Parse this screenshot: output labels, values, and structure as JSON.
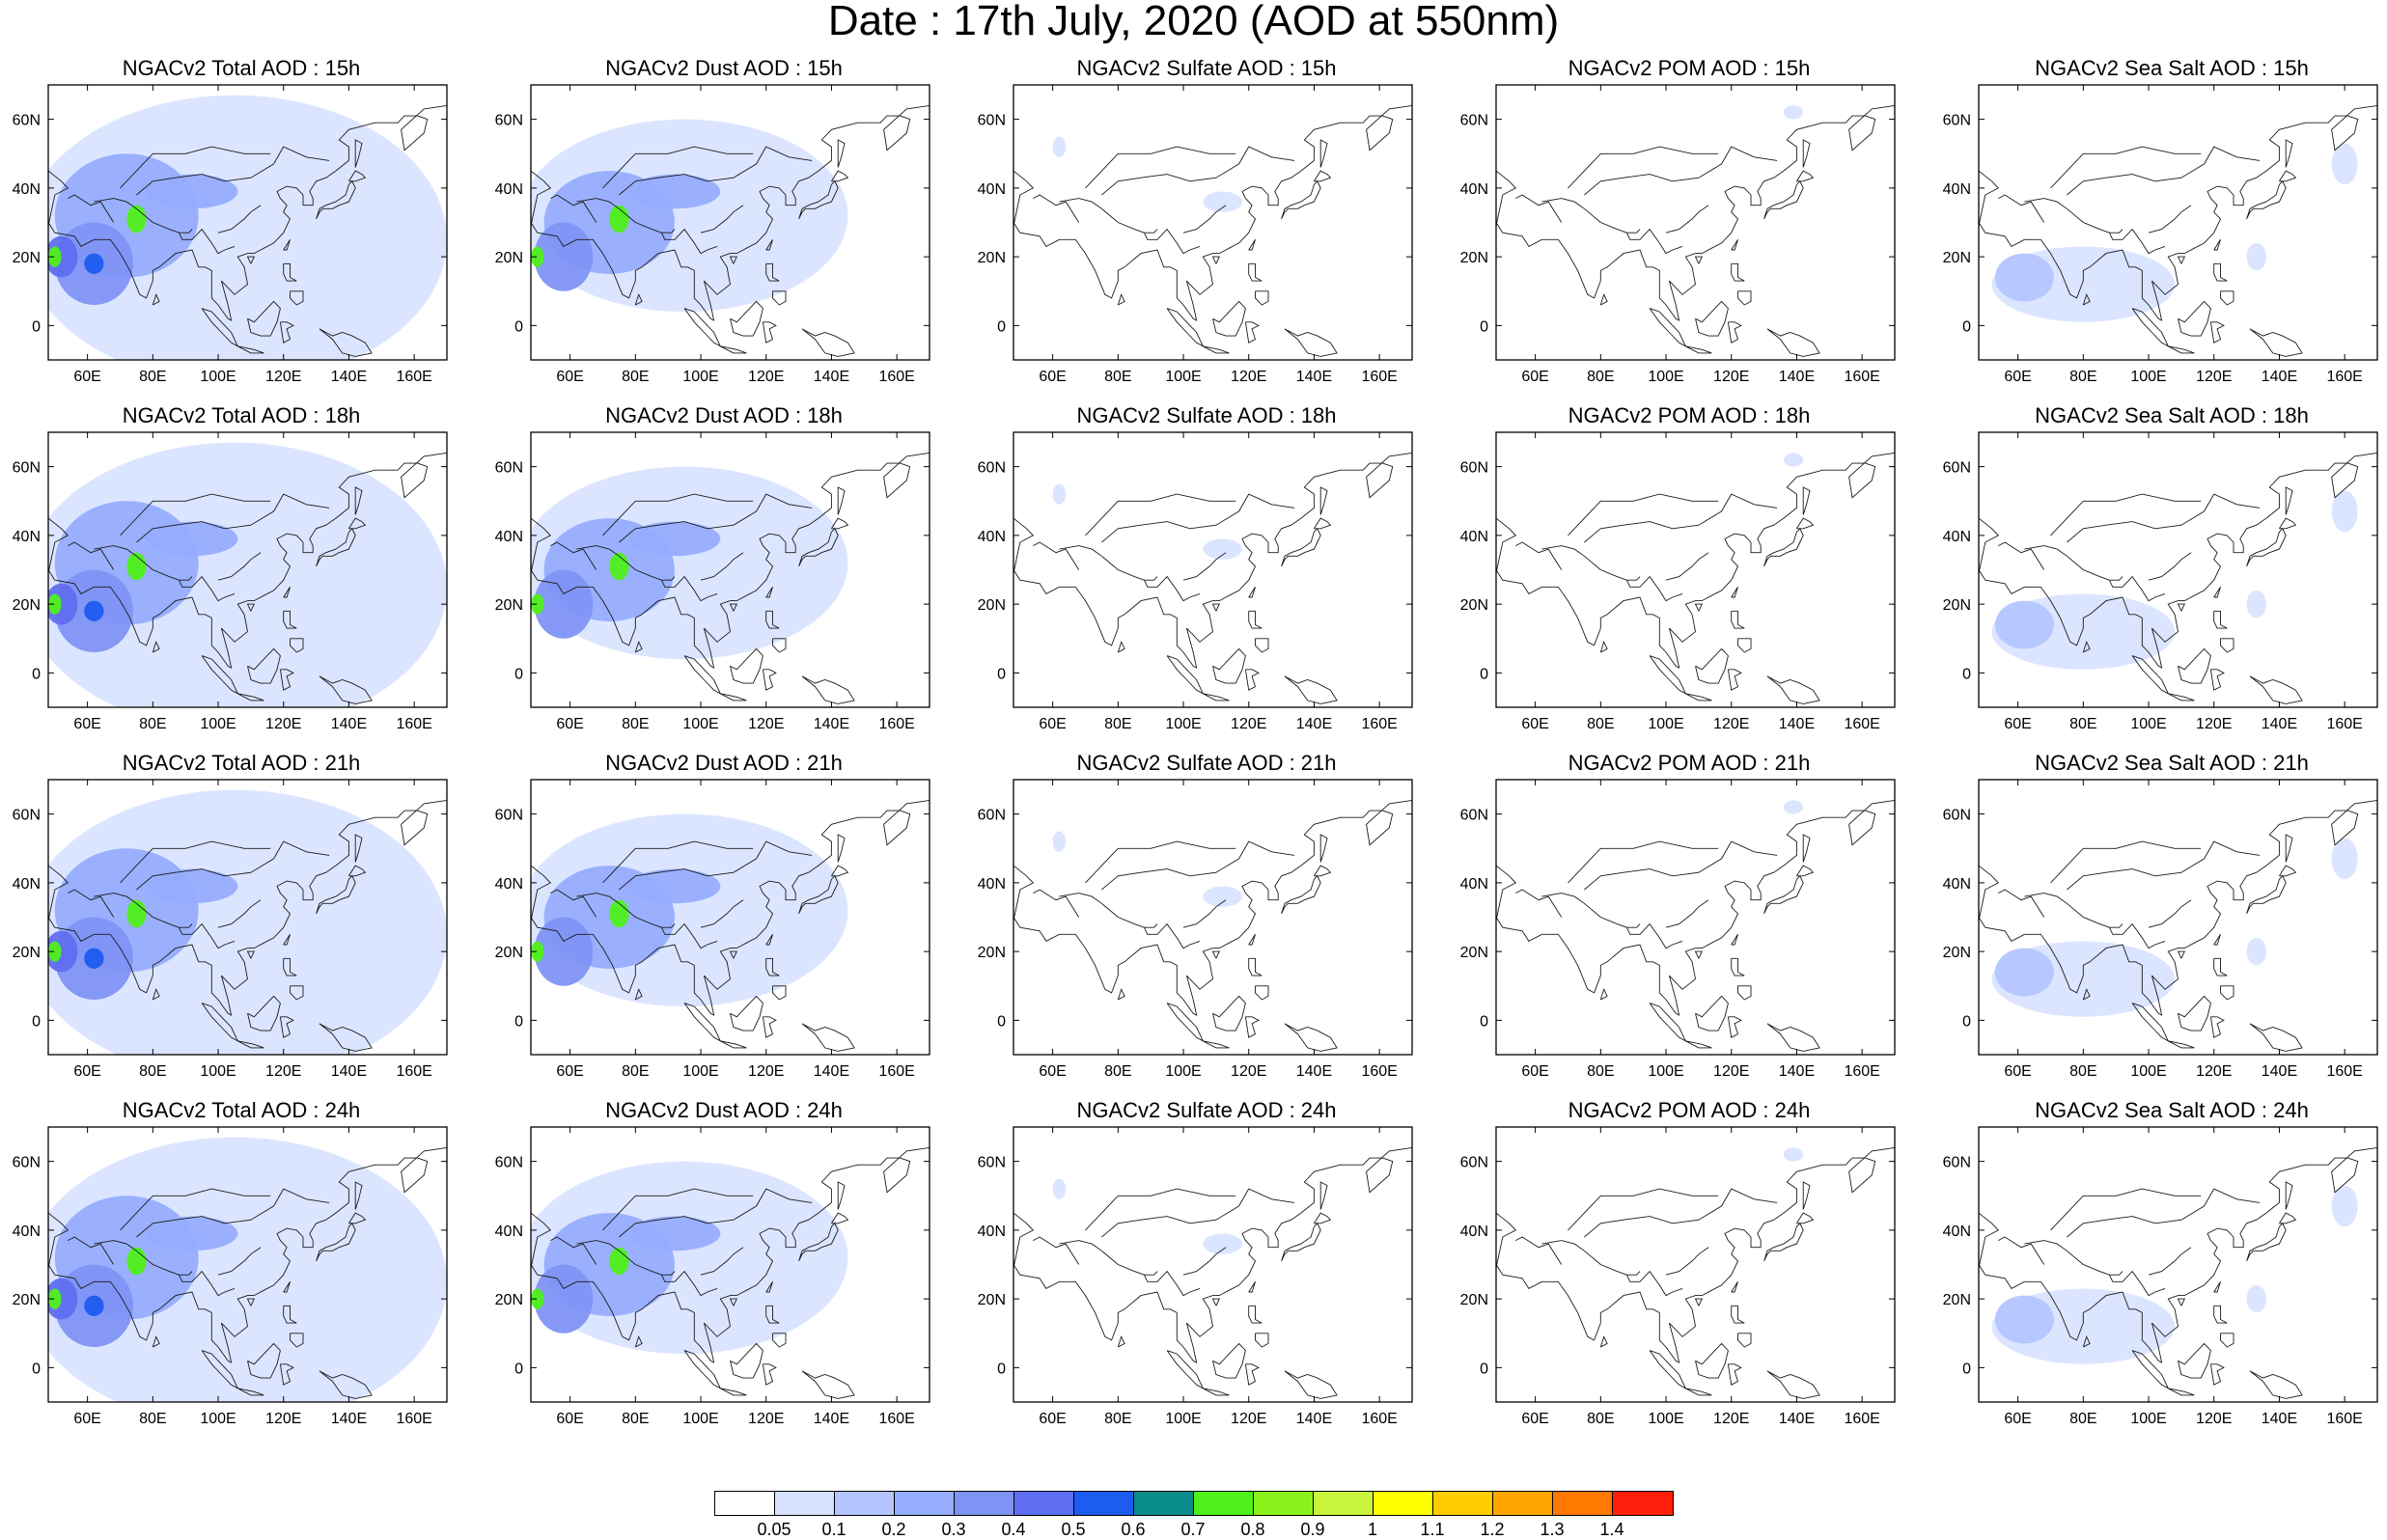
{
  "title": "Date : 17th July, 2020 (AOD at 550nm)",
  "map": {
    "lon_range": [
      48,
      170
    ],
    "lat_range": [
      -10,
      70
    ],
    "lon_ticks": [
      "60E",
      "80E",
      "100E",
      "120E",
      "140E",
      "160E"
    ],
    "lat_ticks": [
      "60N",
      "40N",
      "20N",
      "0"
    ]
  },
  "panels": [
    {
      "title": "NGACv2 Total AOD : 15h",
      "species": "total"
    },
    {
      "title": "NGACv2 Dust AOD : 15h",
      "species": "dust"
    },
    {
      "title": "NGACv2 Sulfate AOD : 15h",
      "species": "sulfate"
    },
    {
      "title": "NGACv2 POM AOD : 15h",
      "species": "pom"
    },
    {
      "title": "NGACv2 Sea Salt AOD : 15h",
      "species": "seasalt"
    },
    {
      "title": "NGACv2 Total AOD : 18h",
      "species": "total"
    },
    {
      "title": "NGACv2 Dust AOD : 18h",
      "species": "dust"
    },
    {
      "title": "NGACv2 Sulfate AOD : 18h",
      "species": "sulfate"
    },
    {
      "title": "NGACv2 POM AOD : 18h",
      "species": "pom"
    },
    {
      "title": "NGACv2 Sea Salt AOD : 18h",
      "species": "seasalt"
    },
    {
      "title": "NGACv2 Total AOD : 21h",
      "species": "total"
    },
    {
      "title": "NGACv2 Dust AOD : 21h",
      "species": "dust"
    },
    {
      "title": "NGACv2 Sulfate AOD : 21h",
      "species": "sulfate"
    },
    {
      "title": "NGACv2 POM AOD : 21h",
      "species": "pom"
    },
    {
      "title": "NGACv2 Sea Salt AOD : 21h",
      "species": "seasalt"
    },
    {
      "title": "NGACv2 Total AOD : 24h",
      "species": "total"
    },
    {
      "title": "NGACv2 Dust AOD : 24h",
      "species": "dust"
    },
    {
      "title": "NGACv2 Sulfate AOD : 24h",
      "species": "sulfate"
    },
    {
      "title": "NGACv2 POM AOD : 24h",
      "species": "pom"
    },
    {
      "title": "NGACv2 Sea Salt  AOD : 24h",
      "species": "seasalt"
    }
  ],
  "colorbar": {
    "labels": [
      "0.05",
      "0.1",
      "0.2",
      "0.3",
      "0.4",
      "0.5",
      "0.6",
      "0.7",
      "0.8",
      "0.9",
      "1",
      "1.1",
      "1.2",
      "1.3",
      "1.4"
    ],
    "colors": [
      "#ffffff",
      "#d6e0ff",
      "#b4c5ff",
      "#96adff",
      "#7f93f5",
      "#5f6ef0",
      "#1c5cf0",
      "#0a8c8c",
      "#4ff01a",
      "#8cf01a",
      "#c8f53c",
      "#ffff00",
      "#ffcc00",
      "#ffa500",
      "#ff7800",
      "#ff1e0a"
    ]
  },
  "plumes": {
    "total": [
      {
        "lon": 105,
        "lat": 25,
        "rx": 65,
        "ry": 42,
        "level": 1
      },
      {
        "lon": 72,
        "lat": 32,
        "rx": 22,
        "ry": 18,
        "level": 3
      },
      {
        "lon": 92,
        "lat": 39,
        "rx": 14,
        "ry": 5,
        "level": 3
      },
      {
        "lon": 62,
        "lat": 18,
        "rx": 12,
        "ry": 12,
        "level": 4
      },
      {
        "lon": 52,
        "lat": 20,
        "rx": 5,
        "ry": 6,
        "level": 5
      },
      {
        "lon": 75,
        "lat": 31,
        "rx": 3,
        "ry": 4,
        "level": 8
      },
      {
        "lon": 62,
        "lat": 18,
        "rx": 3,
        "ry": 3,
        "level": 6
      },
      {
        "lon": 50,
        "lat": 20,
        "rx": 2,
        "ry": 3,
        "level": 8
      }
    ],
    "dust": [
      {
        "lon": 95,
        "lat": 32,
        "rx": 50,
        "ry": 28,
        "level": 1
      },
      {
        "lon": 72,
        "lat": 30,
        "rx": 20,
        "ry": 15,
        "level": 3
      },
      {
        "lon": 92,
        "lat": 39,
        "rx": 14,
        "ry": 5,
        "level": 3
      },
      {
        "lon": 58,
        "lat": 20,
        "rx": 9,
        "ry": 10,
        "level": 4
      },
      {
        "lon": 75,
        "lat": 31,
        "rx": 3,
        "ry": 4,
        "level": 8
      },
      {
        "lon": 50,
        "lat": 20,
        "rx": 2,
        "ry": 3,
        "level": 8
      }
    ],
    "sulfate": [
      {
        "lon": 112,
        "lat": 36,
        "rx": 6,
        "ry": 3,
        "level": 1
      },
      {
        "lon": 62,
        "lat": 52,
        "rx": 2,
        "ry": 3,
        "level": 1
      }
    ],
    "pom": [
      {
        "lon": 139,
        "lat": 62,
        "rx": 3,
        "ry": 2,
        "level": 1
      }
    ],
    "seasalt": [
      {
        "lon": 80,
        "lat": 12,
        "rx": 28,
        "ry": 11,
        "level": 1
      },
      {
        "lon": 62,
        "lat": 14,
        "rx": 9,
        "ry": 7,
        "level": 2
      },
      {
        "lon": 133,
        "lat": 20,
        "rx": 3,
        "ry": 4,
        "level": 1
      },
      {
        "lon": 160,
        "lat": 47,
        "rx": 4,
        "ry": 6,
        "level": 1
      }
    ]
  }
}
